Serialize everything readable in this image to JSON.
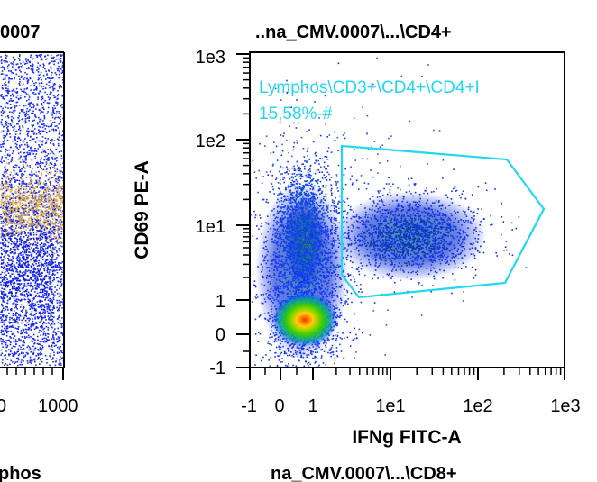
{
  "panels": {
    "left": {
      "title": "0007",
      "x_ticks": [
        "0",
        "1000"
      ],
      "bottom_title": "phos"
    },
    "right": {
      "title": "..na_CMV.0007\\...\\CD4+",
      "xlabel": "IFNg FITC-A",
      "ylabel": "CD69 PE-A",
      "gate_label": "Lymphos\\CD3+\\CD4+\\CD4+I",
      "gate_value": "15,58%-#",
      "bottom_title": "na_CMV.0007\\...\\CD8+"
    }
  },
  "chart_data": [
    {
      "type": "scatter",
      "title": "0007",
      "xlabel": "",
      "ylabel": "",
      "x_tick_labels": [
        "0",
        "1000"
      ],
      "xlim": [
        0,
        1000
      ],
      "note_clusters": [
        {
          "color": "#1e3cff",
          "description_hidden": true
        }
      ]
    },
    {
      "type": "scatter",
      "title": "..na_CMV.0007\\...\\CD4+",
      "xlabel": "IFNg FITC-A",
      "ylabel": "CD69 PE-A",
      "x_scale": "biexponential",
      "y_scale": "biexponential",
      "x_tick_labels": [
        "-1",
        "0",
        "1",
        "1e1",
        "1e2",
        "1e3"
      ],
      "y_tick_labels": [
        "1e3",
        "1e2",
        "1e1",
        "1",
        "0",
        "-1"
      ],
      "xlim": [
        -1,
        1000
      ],
      "ylim": [
        -1,
        1000
      ],
      "populations": [
        {
          "x": 0.6,
          "y": 0.3,
          "density": "peak"
        },
        {
          "x": 0.5,
          "y": 8,
          "density": "medium"
        },
        {
          "x": 30,
          "y": 7,
          "density": "medium"
        }
      ],
      "gate": {
        "label": "Lymphos\\CD3+\\CD4+\\CD4+I",
        "value": "15,58%-#",
        "color": "#22d8f0",
        "vertices": [
          [
            2.5,
            70
          ],
          [
            150,
            60
          ],
          [
            400,
            14
          ],
          [
            150,
            2.2
          ],
          [
            4,
            1.2
          ],
          [
            2.5,
            2.5
          ]
        ]
      }
    }
  ]
}
